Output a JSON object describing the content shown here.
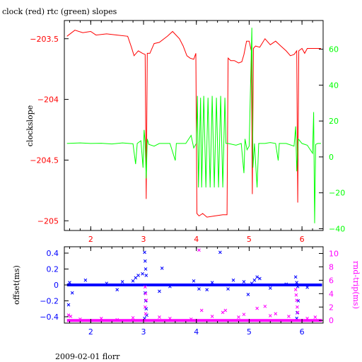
{
  "title": "clock (red) rtc (green) slopes",
  "footer": "2009-02-01 florr",
  "colors": {
    "clock": "#ff0000",
    "rtc": "#00ff00",
    "offset": "#0000ff",
    "rndtrip": "#ff00ff",
    "frame": "#000000"
  },
  "chart_data": [
    {
      "type": "line",
      "title": "clock (red) rtc (green) slopes",
      "ylabel": "clockslope",
      "y2label": "",
      "xlim": [
        1.5,
        6.4
      ],
      "ylim": [
        -205.08,
        -203.35
      ],
      "y2lim": [
        -41,
        76
      ],
      "x_ticks": [
        "2",
        "3",
        "4",
        "5",
        "6"
      ],
      "y_ticks": [
        "-203.5",
        "-204",
        "-204.5",
        "-205"
      ],
      "y2_ticks": [
        "60",
        "40",
        "20",
        "0",
        "-20",
        "-40"
      ],
      "grid": false,
      "series": [
        {
          "name": "clock",
          "axis": "left",
          "color": "#ff0000",
          "points": [
            [
              1.55,
              -203.48
            ],
            [
              1.7,
              -203.43
            ],
            [
              1.85,
              -203.45
            ],
            [
              2.0,
              -203.44
            ],
            [
              2.1,
              -203.47
            ],
            [
              2.3,
              -203.46
            ],
            [
              2.5,
              -203.47
            ],
            [
              2.7,
              -203.48
            ],
            [
              2.77,
              -203.57
            ],
            [
              2.82,
              -203.64
            ],
            [
              2.9,
              -203.6
            ],
            [
              2.98,
              -203.62
            ],
            [
              3.03,
              -203.63
            ],
            [
              3.05,
              -204.82
            ],
            [
              3.07,
              -203.62
            ],
            [
              3.12,
              -203.62
            ],
            [
              3.2,
              -203.54
            ],
            [
              3.3,
              -203.53
            ],
            [
              3.45,
              -203.48
            ],
            [
              3.55,
              -203.44
            ],
            [
              3.68,
              -203.5
            ],
            [
              3.75,
              -203.56
            ],
            [
              3.82,
              -203.64
            ],
            [
              3.88,
              -203.66
            ],
            [
              3.95,
              -203.67
            ],
            [
              3.99,
              -203.62
            ],
            [
              4.01,
              -204.94
            ],
            [
              4.05,
              -204.96
            ],
            [
              4.12,
              -204.94
            ],
            [
              4.2,
              -204.97
            ],
            [
              4.35,
              -204.96
            ],
            [
              4.5,
              -204.95
            ],
            [
              4.58,
              -204.95
            ],
            [
              4.6,
              -203.66
            ],
            [
              4.65,
              -203.68
            ],
            [
              4.72,
              -203.68
            ],
            [
              4.8,
              -203.7
            ],
            [
              4.86,
              -203.69
            ],
            [
              4.9,
              -203.63
            ],
            [
              4.95,
              -203.52
            ],
            [
              5.0,
              -203.52
            ],
            [
              5.04,
              -203.6
            ],
            [
              5.06,
              -204.78
            ],
            [
              5.08,
              -203.58
            ],
            [
              5.12,
              -203.56
            ],
            [
              5.2,
              -203.57
            ],
            [
              5.3,
              -203.5
            ],
            [
              5.4,
              -203.55
            ],
            [
              5.5,
              -203.52
            ],
            [
              5.6,
              -203.56
            ],
            [
              5.7,
              -203.6
            ],
            [
              5.78,
              -203.64
            ],
            [
              5.85,
              -203.63
            ],
            [
              5.9,
              -203.6
            ],
            [
              5.92,
              -204.85
            ],
            [
              5.94,
              -203.6
            ],
            [
              6.0,
              -203.58
            ],
            [
              6.05,
              -203.62
            ],
            [
              6.1,
              -203.58
            ],
            [
              6.2,
              -203.58
            ],
            [
              6.3,
              -203.58
            ],
            [
              6.36,
              -203.58
            ]
          ]
        },
        {
          "name": "rtc",
          "axis": "right",
          "color": "#00ff00",
          "points": [
            [
              1.55,
              7.5
            ],
            [
              1.8,
              7.8
            ],
            [
              2.0,
              7.5
            ],
            [
              2.2,
              7.6
            ],
            [
              2.4,
              7.2
            ],
            [
              2.6,
              7.8
            ],
            [
              2.8,
              7.3
            ],
            [
              2.85,
              -4
            ],
            [
              2.88,
              7.5
            ],
            [
              2.95,
              9
            ],
            [
              2.99,
              -6
            ],
            [
              3.01,
              15
            ],
            [
              3.03,
              8
            ],
            [
              3.05,
              -12
            ],
            [
              3.07,
              10
            ],
            [
              3.1,
              7
            ],
            [
              3.2,
              6
            ],
            [
              3.3,
              7.5
            ],
            [
              3.5,
              7.5
            ],
            [
              3.6,
              -2
            ],
            [
              3.62,
              7.5
            ],
            [
              3.8,
              7.5
            ],
            [
              3.9,
              12
            ],
            [
              3.95,
              5
            ],
            [
              4.0,
              7.5
            ],
            [
              4.02,
              34
            ],
            [
              4.04,
              -17
            ],
            [
              4.08,
              33
            ],
            [
              4.1,
              -17
            ],
            [
              4.14,
              34
            ],
            [
              4.18,
              -17
            ],
            [
              4.22,
              33
            ],
            [
              4.26,
              -17
            ],
            [
              4.3,
              34
            ],
            [
              4.34,
              -17
            ],
            [
              4.38,
              33
            ],
            [
              4.42,
              -17
            ],
            [
              4.46,
              34
            ],
            [
              4.5,
              -17
            ],
            [
              4.54,
              33
            ],
            [
              4.56,
              7.5
            ],
            [
              4.6,
              7.5
            ],
            [
              4.75,
              6.5
            ],
            [
              4.85,
              7.5
            ],
            [
              4.9,
              -9
            ],
            [
              4.92,
              10
            ],
            [
              4.96,
              4
            ],
            [
              5.0,
              6
            ],
            [
              5.05,
              72
            ],
            [
              5.07,
              -6
            ],
            [
              5.1,
              7.5
            ],
            [
              5.15,
              -17
            ],
            [
              5.18,
              7.5
            ],
            [
              5.3,
              7.5
            ],
            [
              5.4,
              8
            ],
            [
              5.5,
              7.5
            ],
            [
              5.55,
              -2
            ],
            [
              5.57,
              7.5
            ],
            [
              5.7,
              7.5
            ],
            [
              5.85,
              6
            ],
            [
              5.88,
              17
            ],
            [
              5.9,
              -8
            ],
            [
              5.93,
              10
            ],
            [
              6.0,
              7.5
            ],
            [
              6.1,
              6.5
            ],
            [
              6.2,
              2
            ],
            [
              6.22,
              25
            ],
            [
              6.24,
              -37
            ],
            [
              6.26,
              7
            ],
            [
              6.3,
              7.5
            ],
            [
              6.36,
              7.5
            ]
          ]
        }
      ]
    },
    {
      "type": "scatter",
      "ylabel": "offset(ms)",
      "y2label": "rnd-trip(ms)",
      "xlim": [
        1.5,
        6.4
      ],
      "ylim": [
        -0.48,
        0.48
      ],
      "y2lim": [
        -0.4,
        11
      ],
      "x_ticks": [
        "2",
        "3",
        "4",
        "5",
        "6"
      ],
      "y_ticks": [
        "0.4",
        "0.2",
        "0",
        "-0.2",
        "-0.4"
      ],
      "y2_ticks": [
        "10",
        "8",
        "6",
        "4",
        "2",
        "0"
      ],
      "grid": false,
      "series": [
        {
          "name": "offset",
          "axis": "left",
          "color": "#0000ff",
          "baseline": 0.0,
          "points": [
            [
              1.58,
              -0.25
            ],
            [
              1.6,
              0.03
            ],
            [
              1.65,
              -0.1
            ],
            [
              1.9,
              0.06
            ],
            [
              2.3,
              0.02
            ],
            [
              2.5,
              -0.06
            ],
            [
              2.6,
              0.04
            ],
            [
              2.8,
              0.05
            ],
            [
              2.85,
              0.09
            ],
            [
              2.9,
              0.12
            ],
            [
              2.98,
              0.14
            ],
            [
              3.02,
              0.41
            ],
            [
              3.03,
              0.3
            ],
            [
              3.04,
              0.2
            ],
            [
              3.05,
              0.12
            ],
            [
              3.03,
              -0.1
            ],
            [
              3.04,
              -0.2
            ],
            [
              3.05,
              -0.3
            ],
            [
              3.06,
              -0.38
            ],
            [
              3.02,
              -0.42
            ],
            [
              3.35,
              0.21
            ],
            [
              3.3,
              -0.08
            ],
            [
              3.5,
              -0.02
            ],
            [
              3.95,
              0.05
            ],
            [
              4.05,
              -0.05
            ],
            [
              4.2,
              -0.06
            ],
            [
              4.3,
              0.03
            ],
            [
              4.45,
              0.41
            ],
            [
              4.6,
              -0.05
            ],
            [
              4.7,
              0.06
            ],
            [
              4.9,
              0.04
            ],
            [
              4.98,
              -0.12
            ],
            [
              5.05,
              0.02
            ],
            [
              5.1,
              0.06
            ],
            [
              5.15,
              0.1
            ],
            [
              5.2,
              0.08
            ],
            [
              5.4,
              -0.04
            ],
            [
              5.7,
              0.01
            ],
            [
              5.88,
              0.1
            ],
            [
              5.9,
              0.03
            ],
            [
              5.92,
              -0.02
            ],
            [
              5.93,
              -0.2
            ],
            [
              5.91,
              -0.35
            ],
            [
              5.9,
              -0.42
            ],
            [
              6.1,
              -0.03
            ]
          ]
        },
        {
          "name": "rnd-trip",
          "axis": "right",
          "color": "#ff00ff",
          "baseline": 0.0,
          "points": [
            [
              1.58,
              0.8
            ],
            [
              1.62,
              0.6
            ],
            [
              1.8,
              0.2
            ],
            [
              2.2,
              0.3
            ],
            [
              2.5,
              0.1
            ],
            [
              2.8,
              0.4
            ],
            [
              3.03,
              5.0
            ],
            [
              3.04,
              4.0
            ],
            [
              3.05,
              3.0
            ],
            [
              3.03,
              2.0
            ],
            [
              3.04,
              1.0
            ],
            [
              3.3,
              0.5
            ],
            [
              3.5,
              0.3
            ],
            [
              3.9,
              0.2
            ],
            [
              4.05,
              10.5
            ],
            [
              4.1,
              1.5
            ],
            [
              4.3,
              0.6
            ],
            [
              4.5,
              1.2
            ],
            [
              4.55,
              1.5
            ],
            [
              4.8,
              0.5
            ],
            [
              4.9,
              0.9
            ],
            [
              5.15,
              1.8
            ],
            [
              5.3,
              2.1
            ],
            [
              5.4,
              0.7
            ],
            [
              5.5,
              1.0
            ],
            [
              5.75,
              0.6
            ],
            [
              5.88,
              4.6
            ],
            [
              5.89,
              3.8
            ],
            [
              5.9,
              3.0
            ],
            [
              5.91,
              2.0
            ],
            [
              5.92,
              1.2
            ],
            [
              6.1,
              0.3
            ],
            [
              6.25,
              0.5
            ]
          ]
        }
      ]
    }
  ]
}
